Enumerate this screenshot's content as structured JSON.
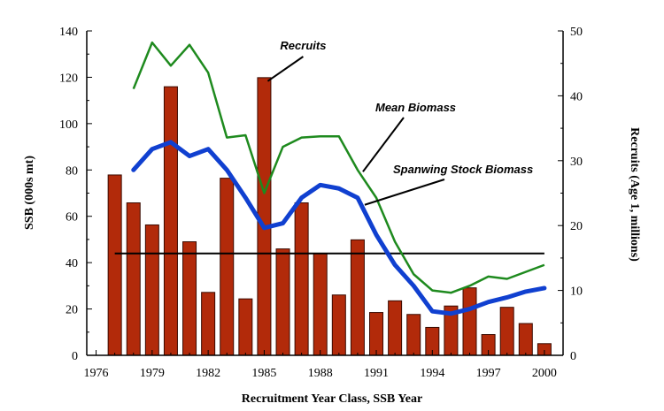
{
  "chart_data": {
    "type": "bar+line",
    "title": "",
    "xlabel": "Recruitment Year Class, SSB Year",
    "ylabel_left": "SSB (000s mt)",
    "ylabel_right": "Recruits (Age 1, millions)",
    "xlim": [
      1975.5,
      2001
    ],
    "ylim_left": [
      0,
      140
    ],
    "ylim_right": [
      0,
      50
    ],
    "x_ticks": [
      1976,
      1979,
      1982,
      1985,
      1988,
      1991,
      1994,
      1997,
      2000
    ],
    "y_ticks_left": [
      0,
      20,
      40,
      60,
      80,
      100,
      120,
      140
    ],
    "y_ticks_right": [
      0,
      10,
      20,
      30,
      40,
      50
    ],
    "recruits": {
      "name": "Recruits",
      "axis": "right",
      "color": "#b22a0a",
      "years": [
        1977,
        1978,
        1979,
        1980,
        1981,
        1982,
        1983,
        1984,
        1985,
        1986,
        1987,
        1988,
        1989,
        1990,
        1991,
        1992,
        1993,
        1994,
        1995,
        1996,
        1997,
        1998,
        1999,
        2000
      ],
      "values": [
        27.8,
        23.5,
        20.1,
        41.4,
        17.5,
        9.7,
        27.3,
        8.7,
        42.8,
        16.4,
        23.5,
        15.7,
        9.3,
        17.8,
        6.6,
        8.4,
        6.3,
        4.3,
        7.6,
        10.4,
        3.2,
        7.4,
        4.9,
        1.8
      ]
    },
    "mean_biomass": {
      "name": "Mean Biomass",
      "axis": "left",
      "color": "#1e8a1e",
      "years": [
        1978,
        1979,
        1980,
        1981,
        1982,
        1983,
        1984,
        1985,
        1986,
        1987,
        1988,
        1989,
        1990,
        1991,
        1992,
        1993,
        1994,
        1995,
        1996,
        1997,
        1998,
        1999,
        2000
      ],
      "values": [
        115,
        135,
        125,
        134,
        122,
        94,
        95,
        70,
        90,
        94,
        94.5,
        94.5,
        80,
        68,
        49,
        35,
        28,
        27,
        30,
        34,
        33,
        36,
        39
      ]
    },
    "ssb": {
      "name": "Spanwing Stock Biomass",
      "axis": "left",
      "color": "#1040d0",
      "years": [
        1978,
        1979,
        1980,
        1981,
        1982,
        1983,
        1984,
        1985,
        1986,
        1987,
        1988,
        1989,
        1990,
        1991,
        1992,
        1993,
        1994,
        1995,
        1996,
        1997,
        1998,
        1999,
        2000
      ],
      "values": [
        80,
        89,
        92,
        86,
        89,
        80,
        68,
        55,
        57,
        68,
        73.5,
        72,
        68,
        52,
        39,
        30,
        19,
        18,
        20,
        23,
        25,
        27.5,
        29
      ]
    },
    "reference_line": {
      "axis": "right",
      "value": 15.7,
      "x_start": 1977,
      "x_end": 2000,
      "color": "#000000"
    },
    "annotations": [
      {
        "label": "Recruits",
        "target": "recruits"
      },
      {
        "label": "Mean Biomass",
        "target": "mean_biomass"
      },
      {
        "label": "Spanwing Stock Biomass",
        "target": "ssb"
      }
    ]
  }
}
